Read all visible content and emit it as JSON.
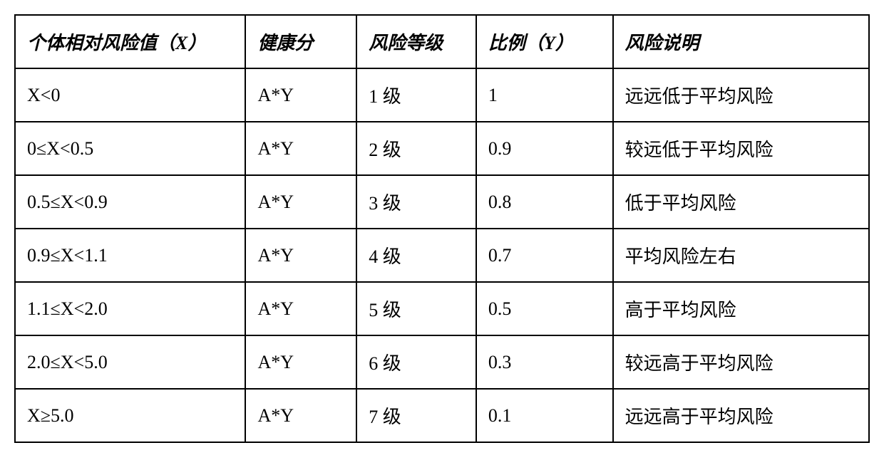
{
  "table": {
    "type": "table",
    "background_color": "#ffffff",
    "border_color": "#000000",
    "border_width": 2,
    "text_color": "#000000",
    "header_fontsize": 26,
    "cell_fontsize": 26,
    "header_fontweight": "bold",
    "header_fontstyle": "italic",
    "font_family": "SimSun",
    "cell_padding": 18,
    "columns": [
      {
        "key": "x_range",
        "label": "个体相对风险值（X）",
        "width_percent": 27
      },
      {
        "key": "health_score",
        "label": "健康分",
        "width_percent": 13
      },
      {
        "key": "risk_level",
        "label": "风险等级",
        "width_percent": 14
      },
      {
        "key": "ratio",
        "label": "比例（Y）",
        "width_percent": 16
      },
      {
        "key": "description",
        "label": "风险说明",
        "width_percent": 30
      }
    ],
    "rows": [
      {
        "x_range": "X<0",
        "health_score": "A*Y",
        "risk_level": "1 级",
        "ratio": "1",
        "description": "远远低于平均风险"
      },
      {
        "x_range": "0≤X<0.5",
        "health_score": "A*Y",
        "risk_level": "2 级",
        "ratio": "0.9",
        "description": "较远低于平均风险"
      },
      {
        "x_range": "0.5≤X<0.9",
        "health_score": "A*Y",
        "risk_level": "3 级",
        "ratio": "0.8",
        "description": "低于平均风险"
      },
      {
        "x_range": "0.9≤X<1.1",
        "health_score": "A*Y",
        "risk_level": "4 级",
        "ratio": "0.7",
        "description": "平均风险左右"
      },
      {
        "x_range": "1.1≤X<2.0",
        "health_score": "A*Y",
        "risk_level": "5 级",
        "ratio": "0.5",
        "description": "高于平均风险"
      },
      {
        "x_range": "2.0≤X<5.0",
        "health_score": "A*Y",
        "risk_level": "6 级",
        "ratio": "0.3",
        "description": "较远高于平均风险"
      },
      {
        "x_range": "X≥5.0",
        "health_score": "A*Y",
        "risk_level": "7 级",
        "ratio": "0.1",
        "description": "远远高于平均风险"
      }
    ]
  }
}
